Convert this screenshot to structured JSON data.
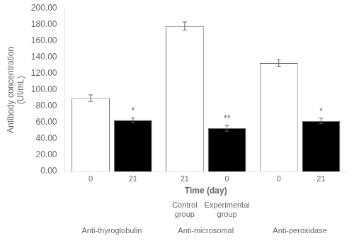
{
  "chart_data": {
    "type": "bar",
    "categories": [
      "Anti-thyroglobulin",
      "Anti-microsomal",
      "Anti-peroxidase"
    ],
    "series": [
      {
        "name": "Control\ngroup",
        "color": "white",
        "values": [
          90.0,
          178.5,
          133.0
        ],
        "errors": [
          4.0,
          5.0,
          4.0
        ],
        "bar_labels": [
          "0",
          "21",
          "0"
        ]
      },
      {
        "name": "Experimental\ngroup",
        "color": "black",
        "values": [
          63.0,
          53.0,
          62.0
        ],
        "errors": [
          3.0,
          3.5,
          3.5
        ],
        "bar_labels": [
          "21",
          "0",
          "21"
        ],
        "significance": [
          "*",
          "**",
          "*"
        ]
      }
    ],
    "xlabel": "Time (day)",
    "ylabel": "Antibody concentration\n(UI/mL)",
    "ylim": [
      0,
      200
    ],
    "yticks": [
      {
        "value": 0,
        "label": "0.00"
      },
      {
        "value": 20,
        "label": "20.00"
      },
      {
        "value": 40,
        "label": "40.00"
      },
      {
        "value": 60,
        "label": "60.00"
      },
      {
        "value": 80,
        "label": "80.00"
      },
      {
        "value": 100,
        "label": "100.00"
      },
      {
        "value": 120,
        "label": "120.00"
      },
      {
        "value": 140,
        "label": "140.00"
      },
      {
        "value": 160,
        "label": "160.00"
      },
      {
        "value": 180,
        "label": "180.00"
      },
      {
        "value": 200,
        "label": "200.00"
      }
    ],
    "grid": false
  }
}
